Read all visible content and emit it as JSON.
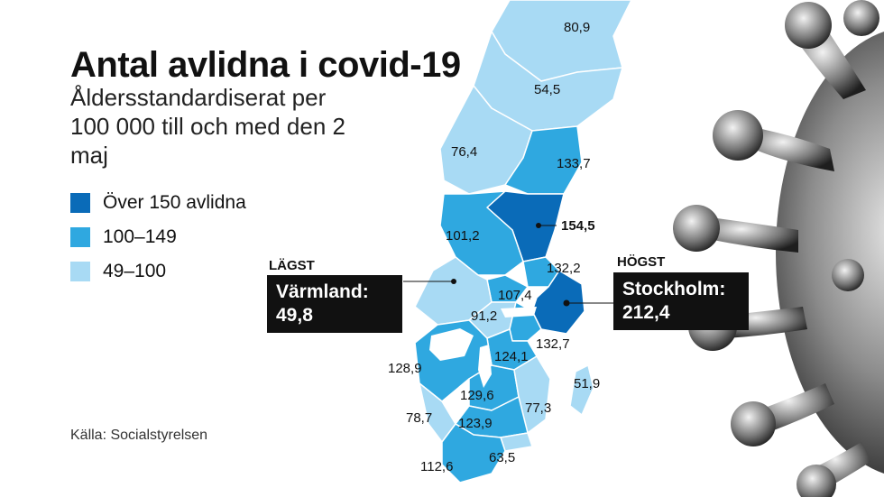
{
  "title": "Antal avlidna i covid-19",
  "subtitle": "Åldersstandardiserat per 100 000 till och med den 2 maj",
  "legend": [
    {
      "label": "Över 150 avlidna",
      "color": "#0a6bb8"
    },
    {
      "label": "100–149",
      "color": "#2fa8e0"
    },
    {
      "label": "49–100",
      "color": "#a8daf4"
    }
  ],
  "source": "Källa: Socialstyrelsen",
  "lowest": {
    "tag": "LÄGST",
    "region": "Värmland:",
    "value": "49,8"
  },
  "highest": {
    "tag": "HÖGST",
    "region": "Stockholm:",
    "value": "212,4"
  },
  "regions": [
    {
      "value": "80,9",
      "tier": "low"
    },
    {
      "value": "54,5",
      "tier": "low"
    },
    {
      "value": "76,4",
      "tier": "low"
    },
    {
      "value": "133,7",
      "tier": "mid"
    },
    {
      "value": "154,5",
      "tier": "high"
    },
    {
      "value": "101,2",
      "tier": "mid"
    },
    {
      "value": "132,2",
      "tier": "mid"
    },
    {
      "value": "107,4",
      "tier": "mid"
    },
    {
      "value": "91,2",
      "tier": "low"
    },
    {
      "value": "132,7",
      "tier": "mid"
    },
    {
      "value": "124,1",
      "tier": "mid"
    },
    {
      "value": "128,9",
      "tier": "mid"
    },
    {
      "value": "51,9",
      "tier": "low"
    },
    {
      "value": "129,6",
      "tier": "mid"
    },
    {
      "value": "77,3",
      "tier": "low"
    },
    {
      "value": "78,7",
      "tier": "low"
    },
    {
      "value": "123,9",
      "tier": "mid"
    },
    {
      "value": "63,5",
      "tier": "low"
    },
    {
      "value": "112,6",
      "tier": "mid"
    }
  ]
}
